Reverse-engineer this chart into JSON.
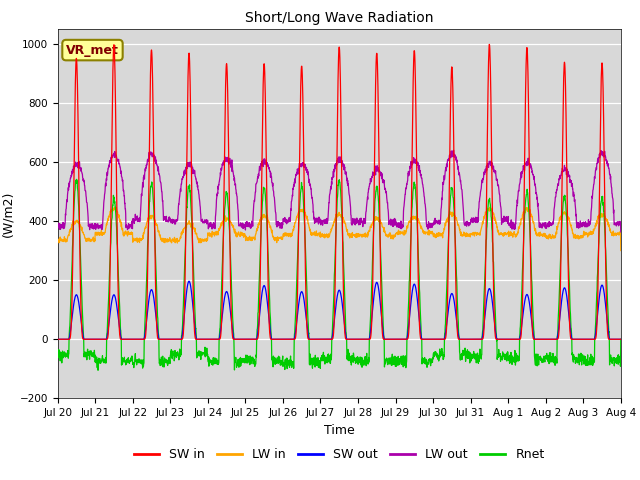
{
  "title": "Short/Long Wave Radiation",
  "xlabel": "Time",
  "ylabel": "(W/m2)",
  "ylim": [
    -200,
    1050
  ],
  "yticks": [
    -200,
    0,
    200,
    400,
    600,
    800,
    1000
  ],
  "plot_bg_color": "#d8d8d8",
  "fig_bg_color": "#ffffff",
  "annotation_text": "VR_met",
  "annotation_box_facecolor": "#ffff99",
  "annotation_box_edgecolor": "#8B8000",
  "annotation_text_color": "#800000",
  "colors": {
    "SW_in": "#ff0000",
    "LW_in": "#ffa500",
    "SW_out": "#0000ff",
    "LW_out": "#aa00aa",
    "Rnet": "#00cc00"
  },
  "legend_labels": [
    "SW in",
    "LW in",
    "SW out",
    "LW out",
    "Rnet"
  ],
  "xtick_labels": [
    "Jul 20",
    "Jul 21",
    "Jul 22",
    "Jul 23",
    "Jul 24",
    "Jul 25",
    "Jul 26",
    "Jul 27",
    "Jul 28",
    "Jul 29",
    "Jul 30",
    "Jul 31",
    "Aug 1",
    "Aug 2",
    "Aug 3",
    "Aug 4"
  ],
  "n_days": 15,
  "points_per_day": 144
}
